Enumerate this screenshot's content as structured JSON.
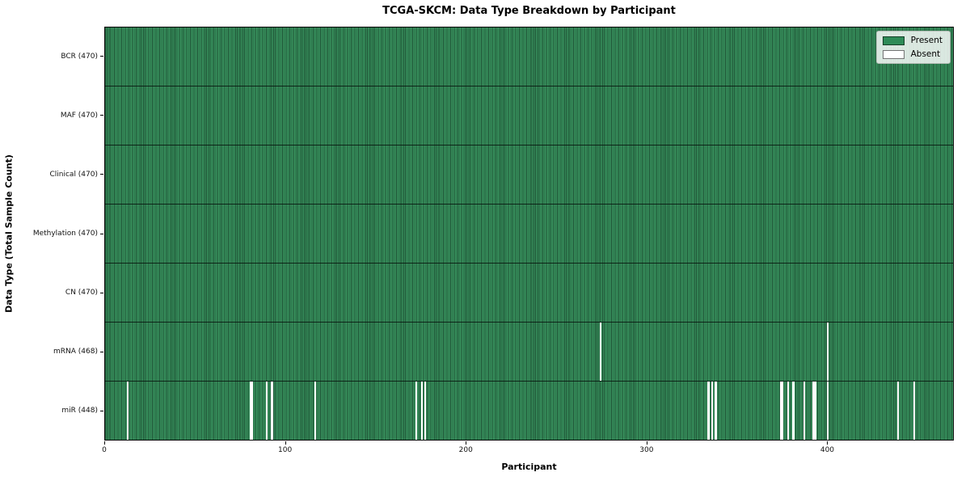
{
  "title": "TCGA-SKCM: Data Type Breakdown by Participant",
  "axes": {
    "x_label": "Participant",
    "y_label": "Data Type (Total Sample Count)",
    "x_ticks": [
      0,
      100,
      200,
      300,
      400
    ],
    "x_range": [
      0,
      470
    ]
  },
  "colors": {
    "present": "#2e8b57",
    "present_stripe_edge": "#1e5134",
    "absent": "#ffffff",
    "separator": "#0a0a0a"
  },
  "legend": {
    "position": "upper-right",
    "items": [
      {
        "label": "Present",
        "color": "#2e8b57"
      },
      {
        "label": "Absent",
        "color": "#ffffff"
      }
    ]
  },
  "chart_data": {
    "type": "heatmap",
    "title": "TCGA-SKCM: Data Type Breakdown by Participant",
    "xlabel": "Participant",
    "ylabel": "Data Type (Total Sample Count)",
    "x_ticks": [
      0,
      100,
      200,
      300,
      400
    ],
    "x_range": [
      0,
      470
    ],
    "n_participants": 470,
    "grid": false,
    "legend_entries": [
      "Present",
      "Absent"
    ],
    "rows": [
      {
        "label": "BCR (470)",
        "data_type": "BCR",
        "present_count": 470,
        "absent_participants": []
      },
      {
        "label": "MAF (470)",
        "data_type": "MAF",
        "present_count": 470,
        "absent_participants": []
      },
      {
        "label": "Clinical (470)",
        "data_type": "Clinical",
        "present_count": 470,
        "absent_participants": []
      },
      {
        "label": "Methylation (470)",
        "data_type": "Methylation",
        "present_count": 470,
        "absent_participants": []
      },
      {
        "label": "CN (470)",
        "data_type": "CN",
        "present_count": 470,
        "absent_participants": []
      },
      {
        "label": "mRNA (468)",
        "data_type": "mRNA",
        "present_count": 468,
        "absent_participants": [
          274,
          400
        ]
      },
      {
        "label": "miR (448)",
        "data_type": "miR",
        "present_count": 448,
        "absent_participants": [
          12,
          80,
          81,
          89,
          92,
          116,
          172,
          175,
          177,
          334,
          336,
          338,
          374,
          375,
          378,
          381,
          387,
          392,
          393,
          400,
          439,
          448
        ]
      }
    ]
  }
}
